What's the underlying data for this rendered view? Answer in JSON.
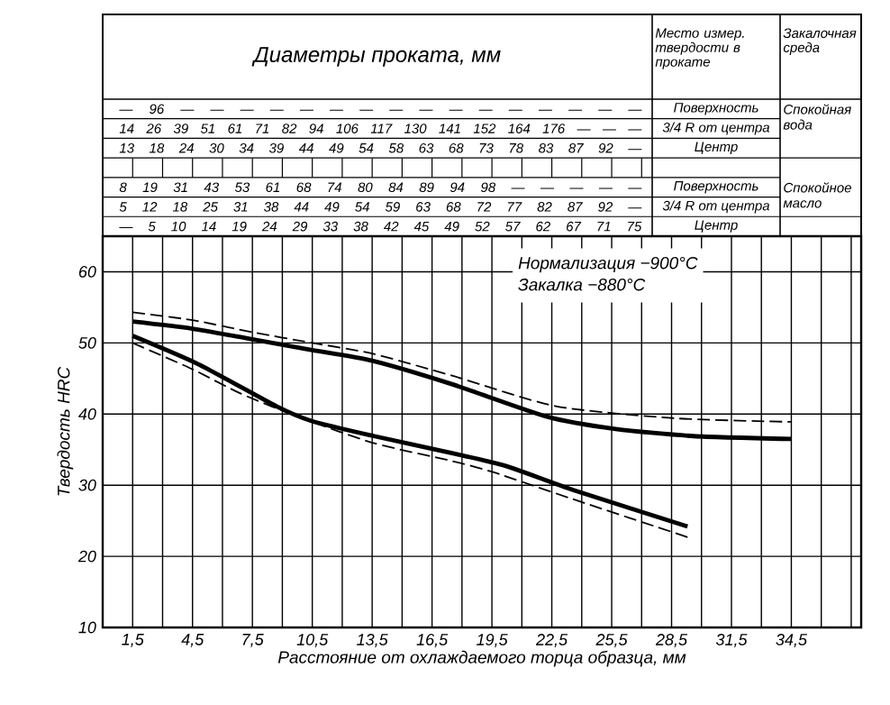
{
  "chart_data": {
    "type": "line",
    "title": "Диаметры проката, мм",
    "xlabel": "Расстояние от охлаждаемого торца образца, мм",
    "ylabel": "Твердость HRC",
    "xlim": [
      0,
      38
    ],
    "ylim": [
      10,
      65
    ],
    "xticks": [
      {
        "value": 1.5,
        "label": "1,5"
      },
      {
        "value": 3,
        "label": null
      },
      {
        "value": 4.5,
        "label": "4,5"
      },
      {
        "value": 6,
        "label": null
      },
      {
        "value": 7.5,
        "label": "7,5"
      },
      {
        "value": 9,
        "label": null
      },
      {
        "value": 10.5,
        "label": "10,5"
      },
      {
        "value": 12,
        "label": null
      },
      {
        "value": 13.5,
        "label": "13,5"
      },
      {
        "value": 15,
        "label": null
      },
      {
        "value": 16.5,
        "label": "16,5"
      },
      {
        "value": 18,
        "label": null
      },
      {
        "value": 19.5,
        "label": "19,5"
      },
      {
        "value": 21,
        "label": null
      },
      {
        "value": 22.5,
        "label": "22,5"
      },
      {
        "value": 24,
        "label": null
      },
      {
        "value": 25.5,
        "label": "25,5"
      },
      {
        "value": 27,
        "label": null
      },
      {
        "value": 28.5,
        "label": "28,5"
      },
      {
        "value": 30,
        "label": null
      },
      {
        "value": 31.5,
        "label": "31,5"
      },
      {
        "value": 33,
        "label": null
      },
      {
        "value": 34.5,
        "label": "34,5"
      },
      {
        "value": 36,
        "label": null
      },
      {
        "value": 37.5,
        "label": null
      }
    ],
    "yticks": [
      10,
      20,
      30,
      40,
      50,
      60
    ],
    "grid": true,
    "series": [
      {
        "color": "#000000",
        "line_style": "solid",
        "x": [
          1.5,
          4.5,
          7.5,
          10.5,
          13.5,
          17.5,
          22.3,
          25.7,
          29.6,
          34.5
        ],
        "values": [
          53,
          52,
          50.5,
          49,
          47.5,
          44.2,
          39.6,
          37.9,
          36.9,
          36.5
        ]
      },
      {
        "color": "#000000",
        "line_style": "dashed",
        "x": [
          1.5,
          4.5,
          7.5,
          10.5,
          13.5,
          17.5,
          22.7,
          28.7,
          34.5
        ],
        "values": [
          54.3,
          53.2,
          51.5,
          50,
          48.5,
          45.4,
          41.1,
          39.4,
          38.9
        ]
      },
      {
        "color": "#000000",
        "line_style": "solid",
        "x": [
          1.5,
          4.8,
          8.7,
          10.5,
          13.6,
          17.5,
          20.2,
          23.6,
          29.3
        ],
        "values": [
          51,
          47,
          41.1,
          39,
          36.9,
          34.5,
          32.7,
          29.3,
          24.2
        ]
      },
      {
        "color": "#000000",
        "line_style": "dashed",
        "x": [
          1.5,
          4.5,
          6.9,
          10,
          13.6,
          17.5,
          19.6,
          23.6,
          29.3
        ],
        "values": [
          50,
          46.3,
          42.9,
          39.4,
          35.9,
          33.4,
          31.8,
          28,
          22.7
        ]
      }
    ],
    "annotations": [
      "Место измер. твердости в прокате",
      "Закалочная среда",
      "— 96 — — — — — — — — — — — — — — — —",
      "14 26 39 51 61 71 82 94 106 117 130 141 152 164 176 — — —",
      "13 18 24 30 34 39 44 49 54 58 63 68 73 78 83 87 92 —",
      "Поверхность",
      "3/4 R от центра",
      "Центр",
      "Спокойная вода",
      "8 19 31 43 53 61 68 74 80 84 89 94 98 — — — — —",
      "5 12 18 25 31 38 44 49 54 59 63 68 72 77 82 87 92 —",
      "— 5 10 14 19 24 29 33 38 42 45 49 52 57 62 67 71 75",
      "Поверхность",
      "3/4 R от центра",
      "Центр",
      "Спокойное масло",
      "Нормализация −900°C",
      "Закалка −880°C"
    ]
  }
}
